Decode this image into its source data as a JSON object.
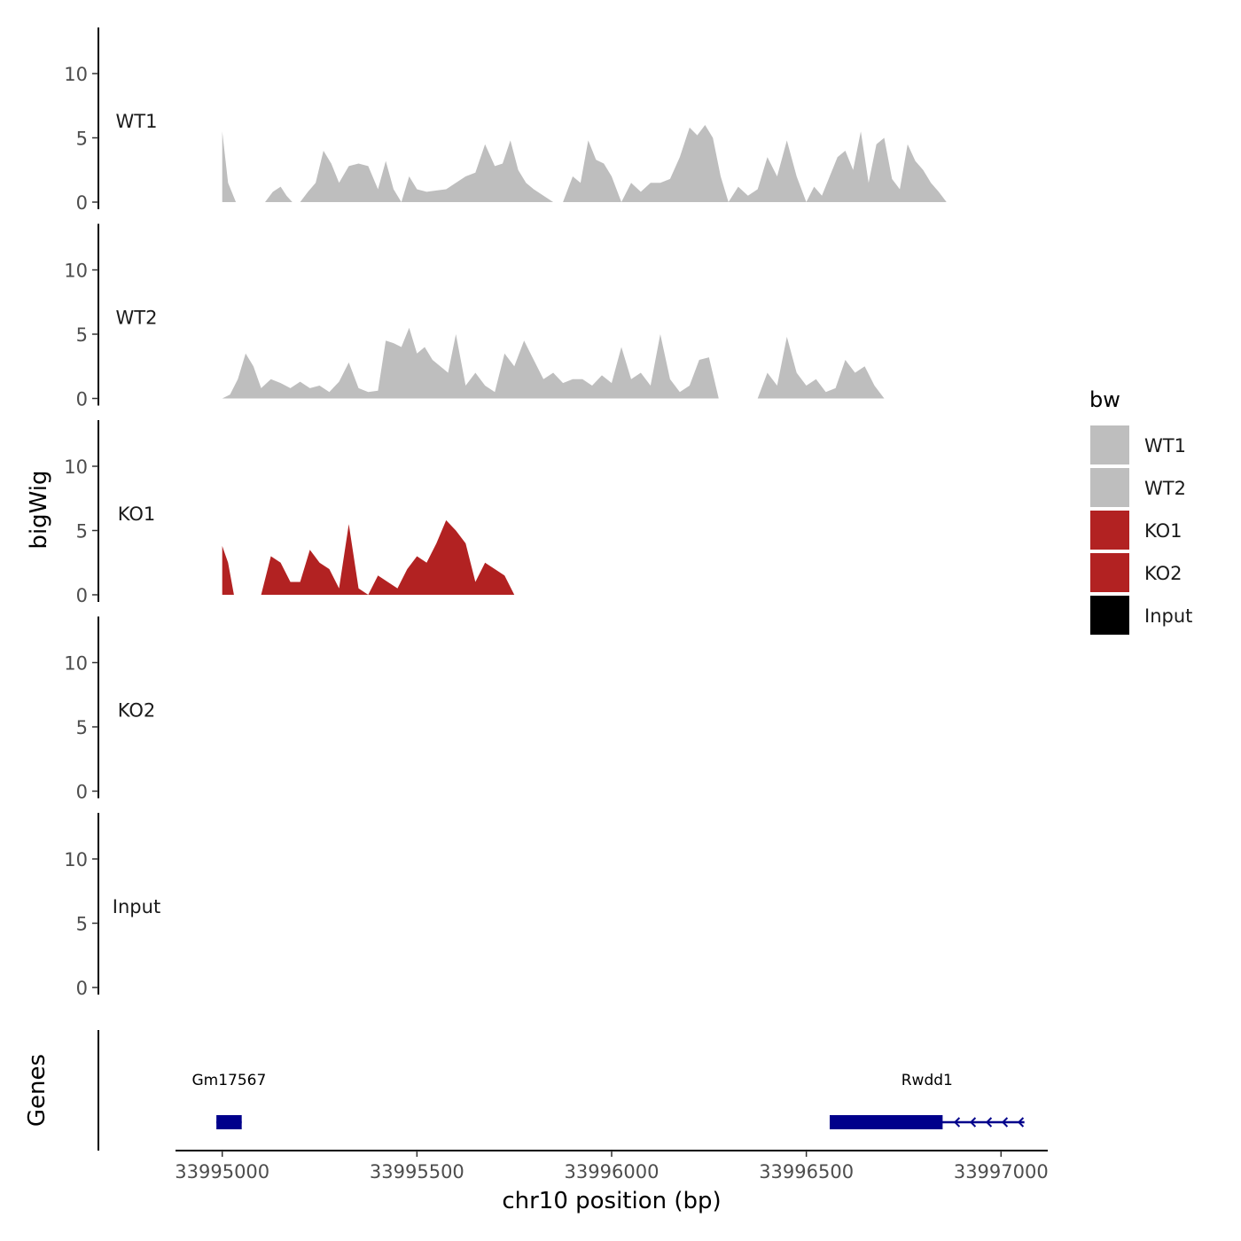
{
  "chart_data": {
    "type": "area",
    "ylabel": "bigWig",
    "xlabel": "chr10 position (bp)",
    "genes_label": "Genes",
    "x_range": [
      33994880,
      33997120
    ],
    "x_ticks": [
      33995000,
      33995500,
      33996000,
      33996500,
      33997000
    ],
    "x_tick_labels": [
      "33995000",
      "33995500",
      "33996000",
      "33996500",
      "33997000"
    ],
    "ylim": [
      0,
      13.5
    ],
    "y_ticks": [
      0,
      5,
      10
    ],
    "y_tick_labels": [
      "0",
      "5",
      "10"
    ],
    "legend": {
      "title": "bw",
      "position": "right",
      "entries": [
        {
          "label": "WT1",
          "color": "#bebebe"
        },
        {
          "label": "WT2",
          "color": "#bebebe"
        },
        {
          "label": "KO1",
          "color": "#b22222"
        },
        {
          "label": "KO2",
          "color": "#b22222"
        },
        {
          "label": "Input",
          "color": "#000000"
        }
      ]
    },
    "series": [
      {
        "name": "WT1",
        "color": "#bebebe",
        "x": [
          33995000,
          33995015,
          33995035,
          33995050,
          33995070,
          33995090,
          33995110,
          33995130,
          33995150,
          33995165,
          33995180,
          33995200,
          33995220,
          33995240,
          33995260,
          33995280,
          33995300,
          33995325,
          33995350,
          33995375,
          33995400,
          33995420,
          33995440,
          33995460,
          33995480,
          33995500,
          33995525,
          33995550,
          33995575,
          33995600,
          33995625,
          33995650,
          33995675,
          33995700,
          33995720,
          33995740,
          33995760,
          33995780,
          33995800,
          33995825,
          33995850,
          33995875,
          33995900,
          33995920,
          33995940,
          33995960,
          33995980,
          33996000,
          33996025,
          33996050,
          33996075,
          33996100,
          33996125,
          33996150,
          33996175,
          33996200,
          33996220,
          33996240,
          33996260,
          33996280,
          33996300,
          33996325,
          33996350,
          33996375,
          33996400,
          33996425,
          33996450,
          33996475,
          33996500,
          33996520,
          33996540,
          33996560,
          33996580,
          33996600,
          33996620,
          33996640,
          33996660,
          33996680,
          33996700,
          33996720,
          33996740,
          33996760,
          33996780,
          33996800,
          33996820,
          33996840,
          33996860,
          33996880,
          33996900,
          33996920,
          33996940,
          33996960,
          33996980,
          33997000,
          33997020,
          33997040
        ],
        "y": [
          5.5,
          1.5,
          0,
          0,
          0,
          0,
          0,
          0.8,
          1.2,
          0.5,
          0,
          0,
          0.8,
          1.5,
          4.0,
          3.0,
          1.5,
          2.8,
          3.0,
          2.8,
          1.0,
          3.2,
          1.0,
          0,
          2.0,
          1.0,
          0.8,
          0.9,
          1.0,
          1.5,
          2.0,
          2.3,
          4.5,
          2.8,
          3.0,
          4.8,
          2.5,
          1.5,
          1.0,
          0.5,
          0,
          0,
          2.0,
          1.5,
          4.8,
          3.3,
          3.0,
          2.0,
          0,
          1.5,
          0.8,
          1.5,
          1.5,
          1.8,
          3.5,
          5.8,
          5.2,
          6.0,
          5.0,
          2.0,
          0,
          1.2,
          0.5,
          1.0,
          3.5,
          2.0,
          4.8,
          2.0,
          0,
          1.2,
          0.5,
          2.0,
          3.5,
          4.0,
          2.5,
          5.5,
          1.5,
          4.5,
          5.0,
          1.8,
          1.0,
          4.5,
          3.2,
          2.5,
          1.5,
          0.8,
          0,
          0,
          0,
          0,
          0,
          0,
          0,
          0,
          0,
          0
        ],
        "dots": []
      },
      {
        "name": "WT2",
        "color": "#bebebe",
        "x": [
          33995000,
          33995020,
          33995040,
          33995060,
          33995080,
          33995100,
          33995125,
          33995150,
          33995175,
          33995200,
          33995225,
          33995250,
          33995275,
          33995300,
          33995325,
          33995350,
          33995375,
          33995400,
          33995420,
          33995440,
          33995460,
          33995480,
          33995500,
          33995520,
          33995540,
          33995560,
          33995580,
          33995600,
          33995625,
          33995650,
          33995675,
          33995700,
          33995725,
          33995750,
          33995775,
          33995800,
          33995825,
          33995850,
          33995875,
          33995900,
          33995925,
          33995950,
          33995975,
          33996000,
          33996025,
          33996050,
          33996075,
          33996100,
          33996125,
          33996150,
          33996175,
          33996200,
          33996225,
          33996250,
          33996275,
          33996300,
          33996325,
          33996350,
          33996375,
          33996400,
          33996425,
          33996450,
          33996475,
          33996500,
          33996525,
          33996550,
          33996575,
          33996600,
          33996625,
          33996650,
          33996675,
          33996700,
          33996725,
          33996750,
          33996775,
          33996800,
          33996825,
          33996850,
          33996875,
          33996900,
          33996925,
          33996950,
          33996975,
          33997000,
          33997020,
          33997040
        ],
        "y": [
          0,
          0.3,
          1.5,
          3.5,
          2.5,
          0.8,
          1.5,
          1.2,
          0.8,
          1.3,
          0.8,
          1.0,
          0.5,
          1.3,
          2.8,
          0.8,
          0.5,
          0.6,
          4.5,
          4.3,
          4.0,
          5.5,
          3.5,
          4.0,
          3.0,
          2.5,
          2.0,
          5.0,
          1.0,
          2.0,
          1.0,
          0.5,
          3.5,
          2.5,
          4.5,
          3.0,
          1.5,
          2.0,
          1.2,
          1.5,
          1.5,
          1.0,
          1.8,
          1.2,
          4.0,
          1.5,
          2.0,
          1.0,
          5.0,
          1.5,
          0.5,
          1.0,
          3.0,
          3.2,
          0,
          0,
          0,
          0,
          0,
          2.0,
          1.0,
          4.8,
          2.0,
          1.0,
          1.5,
          0.5,
          0.8,
          3.0,
          2.0,
          2.5,
          1.0,
          0,
          0,
          0,
          0,
          0,
          0,
          0,
          0,
          0,
          0,
          0,
          0,
          0,
          0,
          0
        ],
        "dots": []
      },
      {
        "name": "KO1",
        "color": "#b22222",
        "x": [
          33995000,
          33995015,
          33995030,
          33995045,
          33995060,
          33995080,
          33995100,
          33995125,
          33995150,
          33995175,
          33995200,
          33995225,
          33995250,
          33995275,
          33995300,
          33995325,
          33995350,
          33995375,
          33995400,
          33995425,
          33995450,
          33995475,
          33995500,
          33995525,
          33995550,
          33995575,
          33995600,
          33995625,
          33995650,
          33995675,
          33995700,
          33995725,
          33995750,
          33995775,
          33995800,
          33995825,
          33995850,
          33995875,
          33995900,
          33995925,
          33995950,
          33995975,
          33996000,
          33996025,
          33996050,
          33996075,
          33996100,
          33996125,
          33996150,
          33996175,
          33996200,
          33996225,
          33996250,
          33996275,
          33996300,
          33996325,
          33996350,
          33996375,
          33996400,
          33996425,
          33996450,
          33996475,
          33996500,
          33996525,
          33996550,
          33996575,
          33996600,
          33996625,
          33996650,
          33996675,
          33996700,
          33996725,
          33996750,
          33996775,
          33996800,
          33996825,
          33996850,
          33996875,
          33996900,
          33996925,
          33996950,
          33996975,
          33997000,
          33997020,
          33997040
        ],
        "y": [
          3.8,
          2.5,
          0,
          0,
          0,
          0,
          0,
          3.0,
          2.5,
          1.0,
          1.0,
          3.5,
          2.5,
          2.0,
          0.5,
          5.5,
          0.5,
          0,
          1.5,
          1.0,
          0.5,
          2.0,
          3.0,
          2.5,
          4.0,
          5.8,
          5.0,
          4.0,
          1.0,
          2.5,
          2.0,
          1.5,
          0,
          0,
          0,
          0,
          0,
          0,
          0,
          0,
          0,
          0,
          0,
          0,
          0,
          0,
          0,
          0,
          0,
          0,
          0,
          0,
          0,
          0,
          0,
          0,
          0,
          0,
          0,
          0,
          0,
          0,
          0,
          0,
          0,
          0,
          0,
          0,
          0,
          0,
          0,
          0,
          0,
          0,
          0,
          0,
          0,
          0,
          0,
          0,
          0,
          0,
          0,
          0,
          0
        ],
        "dots": []
      },
      {
        "name": "KO2",
        "color": "#b22222",
        "x": [
          33995000
        ],
        "y": [
          0
        ],
        "dots": []
      },
      {
        "name": "Input",
        "color": "#000000",
        "x": [
          33995000
        ],
        "y": [
          0
        ],
        "dots": []
      }
    ],
    "genes": [
      {
        "name": "Gm17567",
        "start": 33994985,
        "end": 33995050,
        "strand": "+"
      },
      {
        "name": "Rwdd1",
        "start": 33996560,
        "end": 33997060,
        "thick_end": 33996850,
        "strand": "-"
      }
    ]
  }
}
